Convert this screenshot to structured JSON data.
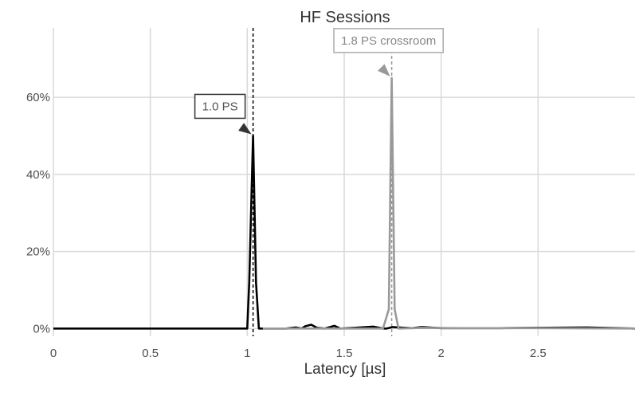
{
  "chart_data": {
    "type": "line",
    "title": "HF Sessions",
    "xlabel": "Latency [µs]",
    "ylabel": "",
    "xlim": [
      0,
      3.0
    ],
    "ylim": [
      -0.02,
      0.78
    ],
    "x_ticks": [
      {
        "value": 0,
        "label": "0"
      },
      {
        "value": 0.5,
        "label": "0.5"
      },
      {
        "value": 1,
        "label": "1"
      },
      {
        "value": 1.5,
        "label": "1.5"
      },
      {
        "value": 2,
        "label": "2"
      },
      {
        "value": 2.5,
        "label": "2.5"
      }
    ],
    "y_ticks": [
      {
        "value": 0,
        "label": "0%"
      },
      {
        "value": 0.2,
        "label": "20%"
      },
      {
        "value": 0.4,
        "label": "40%"
      },
      {
        "value": 0.6,
        "label": "60%"
      }
    ],
    "grid": true,
    "series": [
      {
        "color": "#000000",
        "points": [
          [
            0,
            0
          ],
          [
            0.95,
            0
          ],
          [
            1.0,
            0
          ],
          [
            1.01,
            0.12
          ],
          [
            1.03,
            0.5
          ],
          [
            1.045,
            0.12
          ],
          [
            1.06,
            0
          ],
          [
            1.1,
            0
          ],
          [
            1.2,
            0
          ],
          [
            1.25,
            0.003
          ],
          [
            1.28,
            0
          ],
          [
            1.3,
            0.006
          ],
          [
            1.33,
            0.01
          ],
          [
            1.36,
            0.002
          ],
          [
            1.4,
            0
          ],
          [
            1.45,
            0.007
          ],
          [
            1.48,
            0
          ],
          [
            1.55,
            0.002
          ],
          [
            1.65,
            0.005
          ],
          [
            1.7,
            0
          ],
          [
            1.72,
            0
          ],
          [
            1.75,
            0.004
          ],
          [
            1.78,
            0.003
          ],
          [
            1.85,
            0.001
          ],
          [
            1.9,
            0.004
          ],
          [
            2.0,
            0.001
          ],
          [
            2.3,
            0.001
          ],
          [
            2.75,
            0.003
          ],
          [
            3.0,
            0
          ]
        ]
      },
      {
        "color": "#999999",
        "points": [
          [
            1.08,
            0
          ],
          [
            1.4,
            0
          ],
          [
            1.6,
            0
          ],
          [
            1.7,
            0
          ],
          [
            1.73,
            0.05
          ],
          [
            1.745,
            0.65
          ],
          [
            1.76,
            0.05
          ],
          [
            1.78,
            0
          ],
          [
            1.9,
            0.002
          ],
          [
            2.1,
            0.001
          ],
          [
            2.5,
            0.001
          ],
          [
            3.0,
            0
          ]
        ]
      }
    ],
    "vlines": [
      {
        "x": 1.03,
        "color": "#000000"
      },
      {
        "x": 1.745,
        "color": "#999999"
      }
    ],
    "annotations": [
      {
        "text": "1.0 PS",
        "x": 1.03,
        "y": 0.5,
        "color": "#333333",
        "arrow_color": "#333333",
        "text_color": "#555555"
      },
      {
        "text": "1.8 PS crossroom",
        "x": 1.745,
        "y": 0.65,
        "color": "#aaaaaa",
        "arrow_color": "#999999",
        "text_color": "#888888"
      }
    ]
  }
}
